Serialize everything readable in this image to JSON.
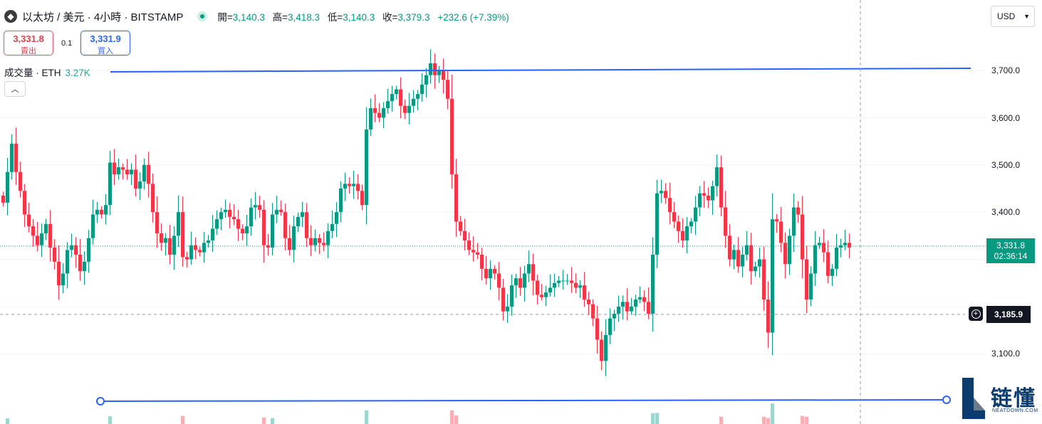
{
  "header": {
    "coin_icon": "ethereum-icon",
    "symbol": "以太坊 / 美元 · 4小時 · BITSTAMP",
    "market_status_color": "#089981",
    "ohlc": {
      "open_label": "開=",
      "open": "3,140.3",
      "high_label": "高=",
      "high": "3,418.3",
      "low_label": "低=",
      "low": "3,140.3",
      "close_label": "收=",
      "close": "3,379.3",
      "change": "+232.6 (+7.39%)"
    }
  },
  "trade": {
    "sell_price": "3,331.8",
    "sell_label": "賣出",
    "quantity": "0.1",
    "buy_price": "3,331.9",
    "buy_label": "買入"
  },
  "volume": {
    "label": "成交量 · ETH",
    "value": "3.27K"
  },
  "currency": {
    "value": "USD"
  },
  "price_label": {
    "price": "3,331.8",
    "countdown": "02:36:14"
  },
  "crosshair_label": "3,185.9",
  "watermark": {
    "title": "链懂",
    "subtitle": "NEATDOWN.COM"
  },
  "colors": {
    "up": "#089981",
    "down": "#f23645",
    "trendline": "#2962ff"
  },
  "chart_data": {
    "type": "candlestick",
    "timeframe": "4h",
    "ylim": [
      3030,
      3760
    ],
    "yticks": [
      {
        "value": 3100,
        "label": "3,100.0"
      },
      {
        "value": 3200,
        "label": "3,200.0"
      },
      {
        "value": 3300,
        "label": "3,300.0"
      },
      {
        "value": 3400,
        "label": "3,400.0"
      },
      {
        "value": 3500,
        "label": "3,500.0"
      },
      {
        "value": 3600,
        "label": "3,600.0"
      },
      {
        "value": 3700,
        "label": "3,700.0"
      }
    ],
    "closes": [
      3420,
      3485,
      3545,
      3485,
      3445,
      3395,
      3370,
      3350,
      3330,
      3355,
      3375,
      3325,
      3295,
      3245,
      3270,
      3320,
      3330,
      3310,
      3275,
      3295,
      3345,
      3395,
      3405,
      3395,
      3415,
      3505,
      3480,
      3495,
      3490,
      3480,
      3490,
      3450,
      3465,
      3500,
      3460,
      3400,
      3355,
      3335,
      3345,
      3310,
      3350,
      3400,
      3305,
      3300,
      3330,
      3320,
      3315,
      3335,
      3340,
      3365,
      3385,
      3400,
      3405,
      3390,
      3385,
      3365,
      3355,
      3370,
      3410,
      3415,
      3405,
      3330,
      3325,
      3395,
      3405,
      3400,
      3345,
      3320,
      3370,
      3390,
      3400,
      3345,
      3330,
      3345,
      3335,
      3330,
      3360,
      3375,
      3400,
      3450,
      3460,
      3455,
      3460,
      3445,
      3415,
      3575,
      3620,
      3610,
      3600,
      3620,
      3635,
      3650,
      3660,
      3625,
      3610,
      3625,
      3640,
      3650,
      3670,
      3690,
      3715,
      3690,
      3700,
      3680,
      3640,
      3480,
      3380,
      3360,
      3340,
      3320,
      3315,
      3310,
      3280,
      3260,
      3280,
      3270,
      3240,
      3190,
      3200,
      3245,
      3260,
      3240,
      3270,
      3290,
      3255,
      3225,
      3220,
      3230,
      3240,
      3250,
      3255,
      3255,
      3255,
      3250,
      3240,
      3245,
      3215,
      3205,
      3175,
      3130,
      3085,
      3140,
      3175,
      3185,
      3200,
      3210,
      3190,
      3200,
      3215,
      3220,
      3210,
      3185,
      3310,
      3440,
      3445,
      3430,
      3400,
      3380,
      3360,
      3340,
      3370,
      3380,
      3410,
      3440,
      3435,
      3425,
      3455,
      3495,
      3410,
      3350,
      3300,
      3320,
      3285,
      3310,
      3330,
      3275,
      3285,
      3300,
      3215,
      3145,
      3385,
      3380,
      3335,
      3290,
      3350,
      3410,
      3395,
      3300,
      3215,
      3270,
      3330,
      3335,
      3315,
      3265,
      3280,
      3325,
      3330,
      3335,
      3325
    ]
  },
  "trendlines": [
    {
      "name": "resistance",
      "from_index": 0,
      "to_index": 225,
      "from_price": 3695,
      "to_price": 3702
    },
    {
      "name": "support",
      "from_index": 0,
      "to_index": 225,
      "from_price": 3030,
      "to_price": 3030
    }
  ]
}
